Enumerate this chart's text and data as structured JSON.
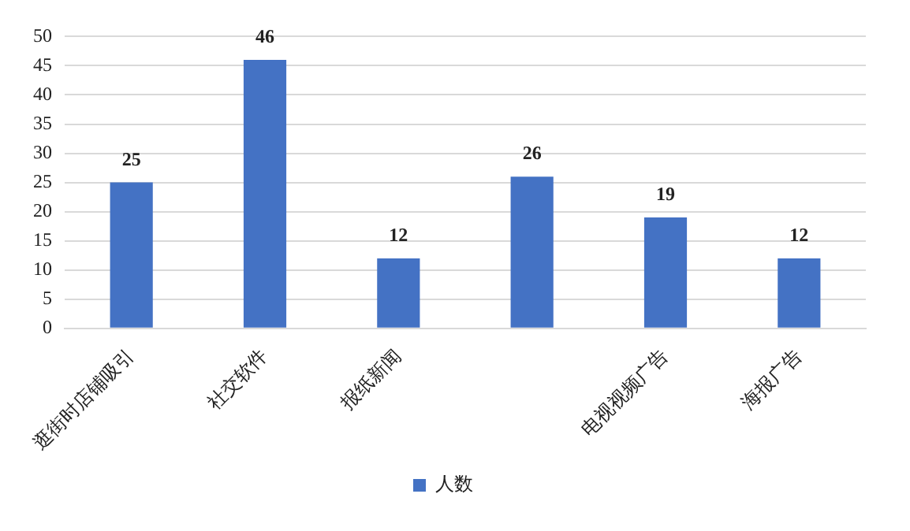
{
  "chart_data": {
    "type": "bar",
    "categories": [
      "逛街时店铺吸引",
      "社交软件",
      "报纸新闻",
      null,
      "电视视频广告",
      "海报广告"
    ],
    "series": [
      {
        "name": "人数",
        "color": "#4472c4",
        "values": [
          25,
          46,
          12,
          26,
          19,
          12
        ]
      }
    ],
    "ylim": [
      0,
      50
    ],
    "yticks": [
      0,
      5,
      10,
      15,
      20,
      25,
      30,
      35,
      40,
      45,
      50
    ],
    "grid": "y",
    "legend": "bottom",
    "data_labels": true
  }
}
